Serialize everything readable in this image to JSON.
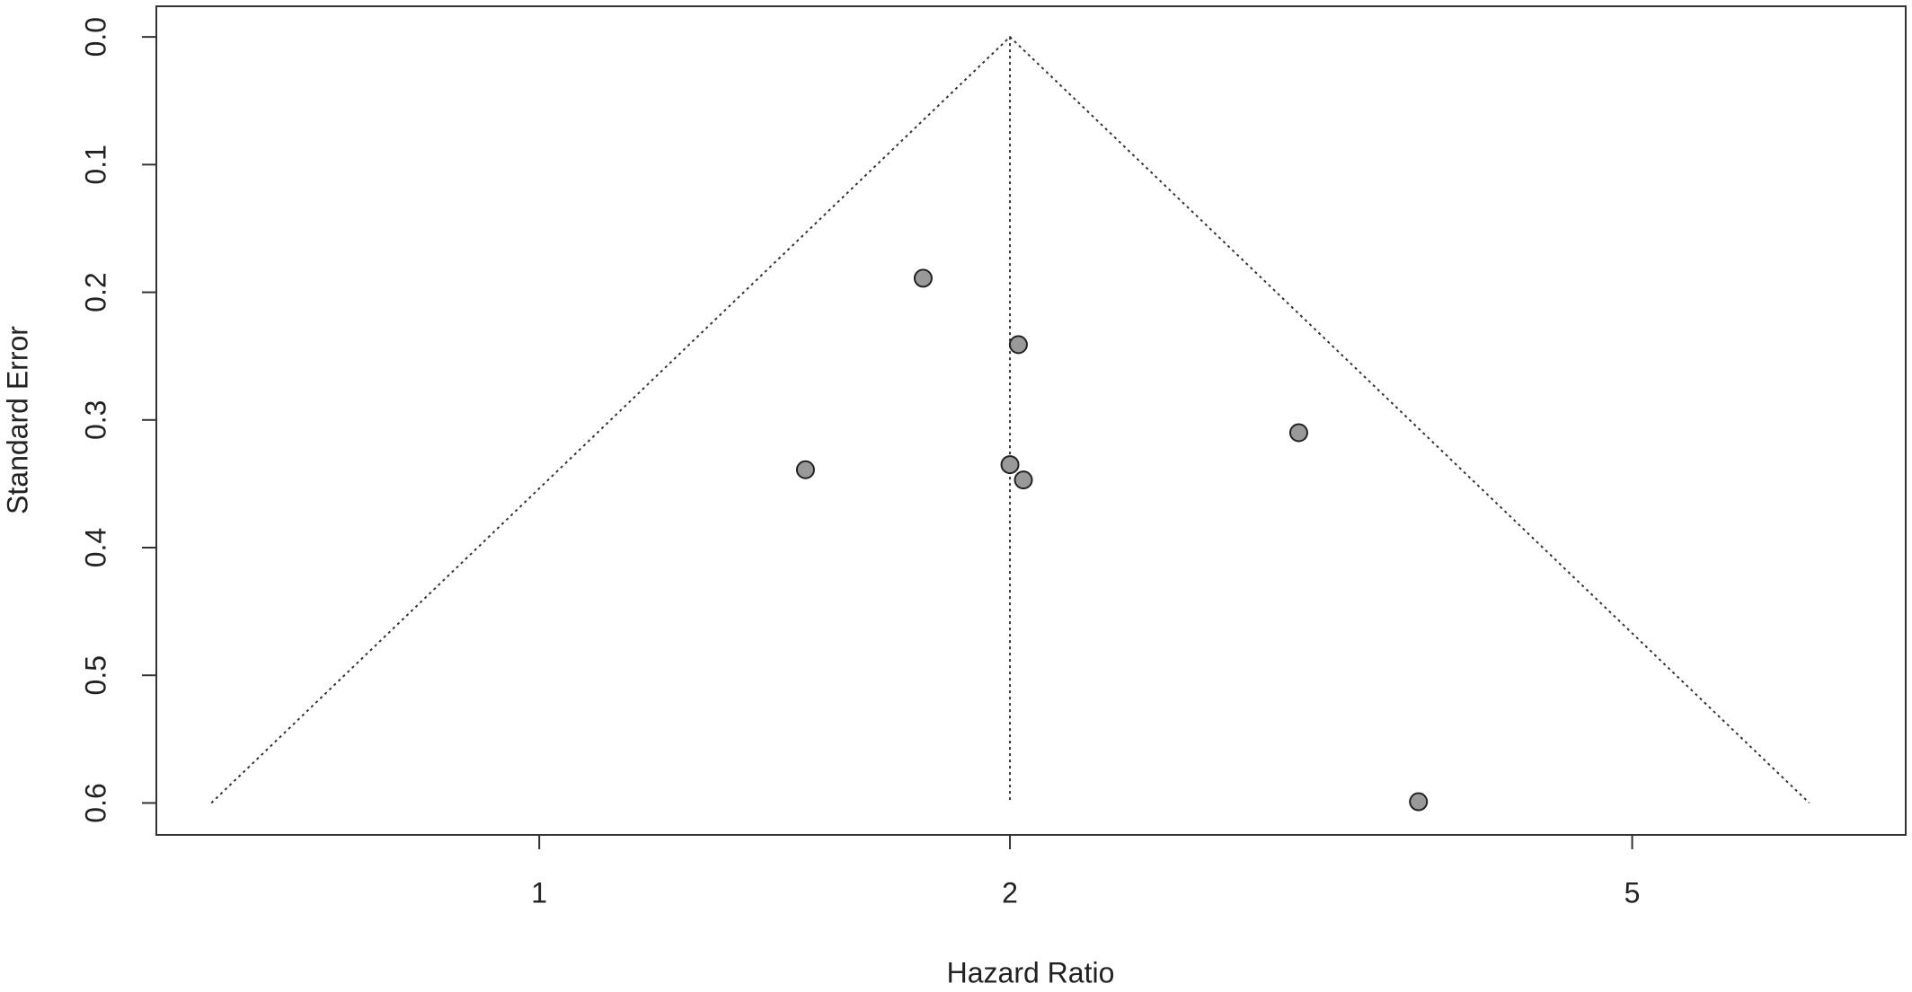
{
  "chart_data": {
    "type": "scatter",
    "x_label": "Hazard Ratio",
    "y_label": "Standard Error",
    "xscale": "log",
    "xlim": [
      0.569,
      7.48
    ],
    "ylim": [
      0.625,
      -0.024
    ],
    "xticks": [
      1,
      2,
      5
    ],
    "yticks": [
      {
        "value": 0,
        "label": "0.0"
      },
      0.1,
      0.2,
      0.3,
      0.4,
      0.5,
      0.6
    ],
    "series": [
      {
        "color": "#999999",
        "x": [
          1.76,
          2.025,
          3.06,
          1.48,
          2.0,
          2.04,
          3.65
        ],
        "values": [
          0.189,
          0.241,
          0.31,
          0.339,
          0.335,
          0.347,
          0.599
        ]
      }
    ],
    "funnel": {
      "x": [
        0.617,
        2,
        6.49
      ],
      "y": [
        0.6,
        0,
        0.6
      ]
    },
    "center_line": {
      "x": [
        2,
        2
      ],
      "y": [
        0,
        0.6
      ]
    }
  }
}
